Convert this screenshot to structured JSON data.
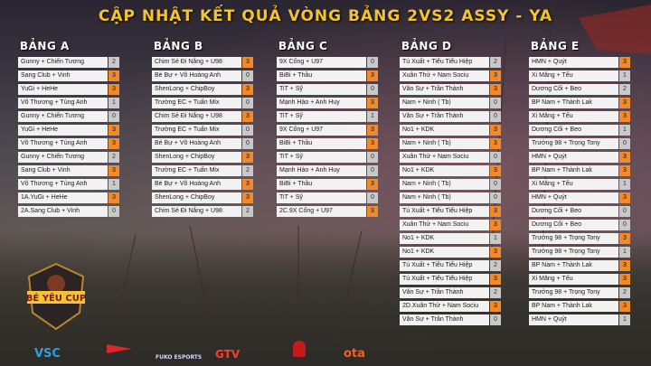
{
  "title": "CẬP NHẬT KẾT QUẢ VÒNG BẢNG 2VS2 ASSY - YA",
  "groups": [
    {
      "name": "BẢNG A",
      "matches": [
        [
          [
            "Gunny + Chiến Tương",
            "2",
            false
          ],
          [
            "Sang Club + Vinh",
            "3",
            true
          ]
        ],
        [
          [
            "YuGi + HeHe",
            "3",
            true
          ],
          [
            "Võ Thương + Tùng Anh",
            "1",
            false
          ]
        ],
        [
          [
            "Gunny + Chiến Tương",
            "0",
            false
          ],
          [
            "YuGi + HeHe",
            "3",
            true
          ]
        ],
        [
          [
            "Võ Thương + Tùng Anh",
            "3",
            true
          ],
          [
            "Gunny + Chiến Tương",
            "2",
            false
          ]
        ],
        [
          [
            "Sang Club + Vinh",
            "3",
            true
          ],
          [
            "Võ Thương + Tùng Anh",
            "1",
            false
          ]
        ],
        [
          [
            "1A.YuGi + HeHe",
            "3",
            true
          ],
          [
            "2A.Sang Club + Vinh",
            "0",
            false
          ]
        ]
      ]
    },
    {
      "name": "BẢNG B",
      "matches": [
        [
          [
            "Chim Sẻ Đi Nắng + U98",
            "3",
            true
          ],
          [
            "Bé Bự + Võ Hoàng Anh",
            "0",
            false
          ]
        ],
        [
          [
            "ShenLong + ChipBoy",
            "3",
            true
          ],
          [
            "Trường EC + Tuấn Mix",
            "0",
            false
          ]
        ],
        [
          [
            "Chim Sẻ Đi Nắng + U98",
            "3",
            true
          ],
          [
            "Trường EC + Tuấn Mix",
            "0",
            false
          ]
        ],
        [
          [
            "Bé Bự + Võ Hoàng Anh",
            "0",
            false
          ],
          [
            "ShenLong + ChipBoy",
            "3",
            true
          ]
        ],
        [
          [
            "Trường EC + Tuấn Mix",
            "2",
            false
          ],
          [
            "Bé Bự + Võ Hoàng Anh",
            "3",
            true
          ]
        ],
        [
          [
            "ShenLong + ChipBoy",
            "3",
            true
          ],
          [
            "Chim Sẻ Đi Nắng + U98",
            "2",
            false
          ]
        ]
      ]
    },
    {
      "name": "BẢNG C",
      "matches": [
        [
          [
            "9X Cống + U97",
            "0",
            false
          ],
          [
            "BiBi + Thầu",
            "3",
            true
          ]
        ],
        [
          [
            "TiT + Sỹ",
            "0",
            false
          ],
          [
            "Mạnh Hào + Anh Huy",
            "3",
            true
          ]
        ],
        [
          [
            "TiT + Sỹ",
            "1",
            false
          ],
          [
            "9X Cống + U97",
            "3",
            true
          ]
        ],
        [
          [
            "BiBi + Thầu",
            "3",
            true
          ],
          [
            "TiT + Sỹ",
            "0",
            false
          ]
        ],
        [
          [
            "Mạnh Hào + Anh Huy",
            "0",
            false
          ],
          [
            "BiBi + Thầu",
            "3",
            true
          ]
        ],
        [
          [
            "TiT + Sỹ",
            "0",
            false
          ],
          [
            "2C.9X Cống + U97",
            "3",
            true
          ]
        ]
      ]
    },
    {
      "name": "BẢNG D",
      "matches": [
        [
          [
            "Tú Xuất + Tiểu Tiểu Hiệp",
            "2",
            false
          ],
          [
            "Xuân Thử + Nam Sociu",
            "3",
            true
          ]
        ],
        [
          [
            "Văn Sự + Trần Thành",
            "3",
            true
          ],
          [
            "Nam + Ninh ( Tb)",
            "0",
            false
          ]
        ],
        [
          [
            "Văn Sự + Trần Thành",
            "0",
            false
          ],
          [
            "No1 + KDK",
            "3",
            true
          ]
        ],
        [
          [
            "Nam + Ninh ( Tb)",
            "3",
            true
          ],
          [
            "Xuân Thử + Nam Sociu",
            "0",
            false
          ]
        ],
        [
          [
            "No1 + KDK",
            "3",
            true
          ],
          [
            "Nam + Ninh ( Tb)",
            "0",
            false
          ]
        ],
        [
          [
            "Nam + Ninh ( Tb)",
            "0",
            false
          ],
          [
            "Tú Xuất + Tiểu Tiểu Hiệp",
            "3",
            true
          ]
        ],
        [
          [
            "Xuân Thử + Nam Sociu",
            "3",
            true
          ],
          [
            "No1 + KDK",
            "1",
            false
          ]
        ],
        [
          [
            "No1 + KDK",
            "3",
            true
          ],
          [
            "Tú Xuất + Tiểu Tiểu Hiệp",
            "2",
            false
          ]
        ],
        [
          [
            "Tú Xuất + Tiểu Tiểu Hiệp",
            "3",
            true
          ],
          [
            "Văn Sự + Trần Thành",
            "2",
            false
          ]
        ],
        [
          [
            "2D.Xuân Thử + Nam Sociu",
            "3",
            true
          ],
          [
            "Văn Sự + Trần Thành",
            "0",
            false
          ]
        ]
      ]
    },
    {
      "name": "BẢNG E",
      "matches": [
        [
          [
            "HMN + Quýt",
            "3",
            true
          ],
          [
            "Xi Măng + Tếu",
            "1",
            false
          ]
        ],
        [
          [
            "Dương Cối + Beo",
            "2",
            false
          ],
          [
            "BP Nam + Thành Lak",
            "3",
            true
          ]
        ],
        [
          [
            "Xi Măng + Tếu",
            "3",
            true
          ],
          [
            "Dương Cối + Beo",
            "1",
            false
          ]
        ],
        [
          [
            "Trưởng 98 + Trọng Tony",
            "0",
            false
          ],
          [
            "HMN + Quýt",
            "3",
            true
          ]
        ],
        [
          [
            "BP Nam + Thành Lak",
            "3",
            true
          ],
          [
            "Xi Măng + Tếu",
            "1",
            false
          ]
        ],
        [
          [
            "HMN + Quýt",
            "3",
            true
          ],
          [
            "Dương Cối + Beo",
            "0",
            false
          ]
        ],
        [
          [
            "Dương Cối + Beo",
            "0",
            false
          ],
          [
            "Trưởng 98 + Trọng Tony",
            "3",
            true
          ]
        ],
        [
          [
            "Trưởng 98 + Trọng Tony",
            "1",
            false
          ],
          [
            "BP Nam + Thành Lak",
            "3",
            true
          ]
        ],
        [
          [
            "Xi Măng + Tếu",
            "3",
            true
          ],
          [
            "Trưởng 98 + Trọng Tony",
            "2",
            false
          ]
        ],
        [
          [
            "BP Nam + Thành Lak",
            "3",
            true
          ],
          [
            "HMN + Quýt",
            "1",
            false
          ]
        ]
      ]
    }
  ],
  "logo_cup_text": "BÉ YÊU CUP",
  "sponsors": [
    "VSC",
    "GTV",
    "FUKO ESPORTS",
    "ota"
  ],
  "accent_color": "#f08a2c",
  "title_color": "#f2c434"
}
